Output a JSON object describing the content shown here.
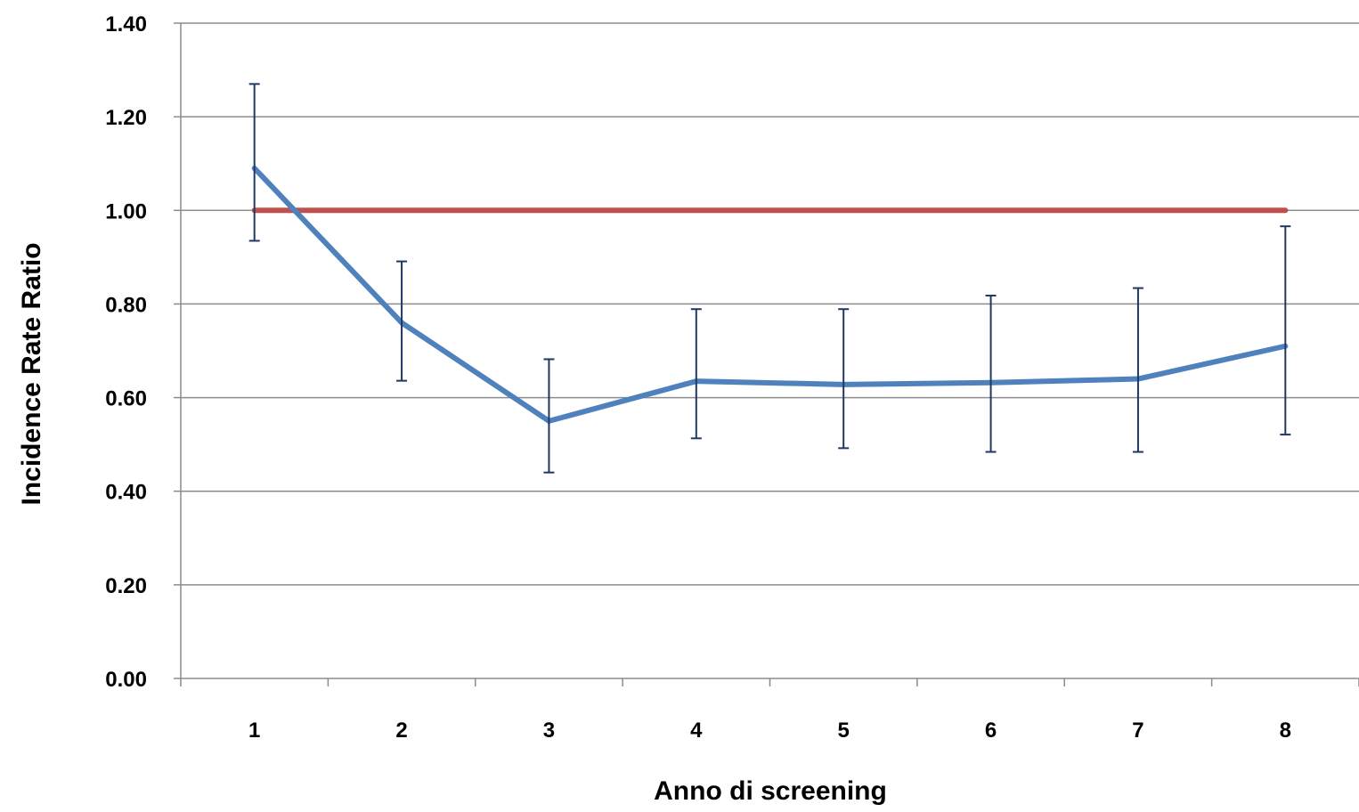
{
  "chart_data": {
    "type": "line",
    "title": "",
    "xlabel": "Anno di screening",
    "ylabel": "Incidence Rate Ratio",
    "categories": [
      "1",
      "2",
      "3",
      "4",
      "5",
      "6",
      "7",
      "8"
    ],
    "y_ticks": [
      "0.00",
      "0.20",
      "0.40",
      "0.60",
      "0.80",
      "1.00",
      "1.20",
      "1.40"
    ],
    "ylim": [
      0,
      1.4
    ],
    "grid": true,
    "legend": "none",
    "series": [
      {
        "values": [
          1.09,
          0.76,
          0.55,
          0.635,
          0.628,
          0.632,
          0.64,
          0.71
        ],
        "error_low": [
          0.935,
          0.636,
          0.44,
          0.513,
          0.492,
          0.484,
          0.484,
          0.521
        ],
        "error_high": [
          1.27,
          0.891,
          0.682,
          0.789,
          0.789,
          0.818,
          0.834,
          0.966
        ],
        "color": "#4f81bd",
        "error_bar_color": "#1f3864"
      },
      {
        "values": [
          1.0,
          1.0,
          1.0,
          1.0,
          1.0,
          1.0,
          1.0,
          1.0
        ],
        "color": "#c0504d"
      }
    ]
  }
}
